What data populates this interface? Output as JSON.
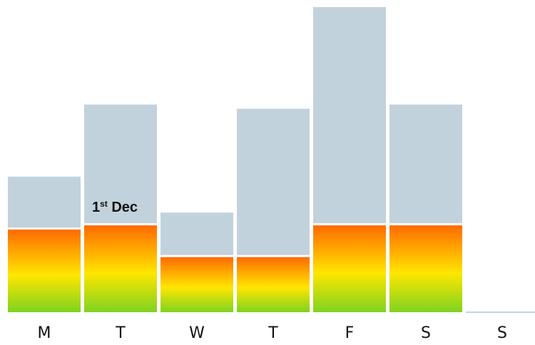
{
  "chart_data": {
    "type": "bar",
    "categories": [
      "M",
      "T",
      "W",
      "T",
      "F",
      "S",
      "S"
    ],
    "series": [
      {
        "values": [
          1.2,
          2.8,
          1.0,
          3.45,
          5.1,
          2.8,
          0.0
        ]
      },
      {
        "values": [
          1.95,
          2.05,
          1.3,
          1.3,
          2.05,
          2.05,
          0.0
        ]
      }
    ],
    "ylim": [
      0,
      7.2
    ],
    "grid": false,
    "legend": "none",
    "annotation": {
      "index": 1,
      "main": "1",
      "sup": "st",
      "rest": " Dec"
    },
    "colors": {
      "upper": "#c2d2dc",
      "gradient_top": "#ff6a00",
      "gradient_mid": "#ffe600",
      "gradient_bottom": "#7ed321",
      "baseline": "#c2d2dc"
    }
  }
}
